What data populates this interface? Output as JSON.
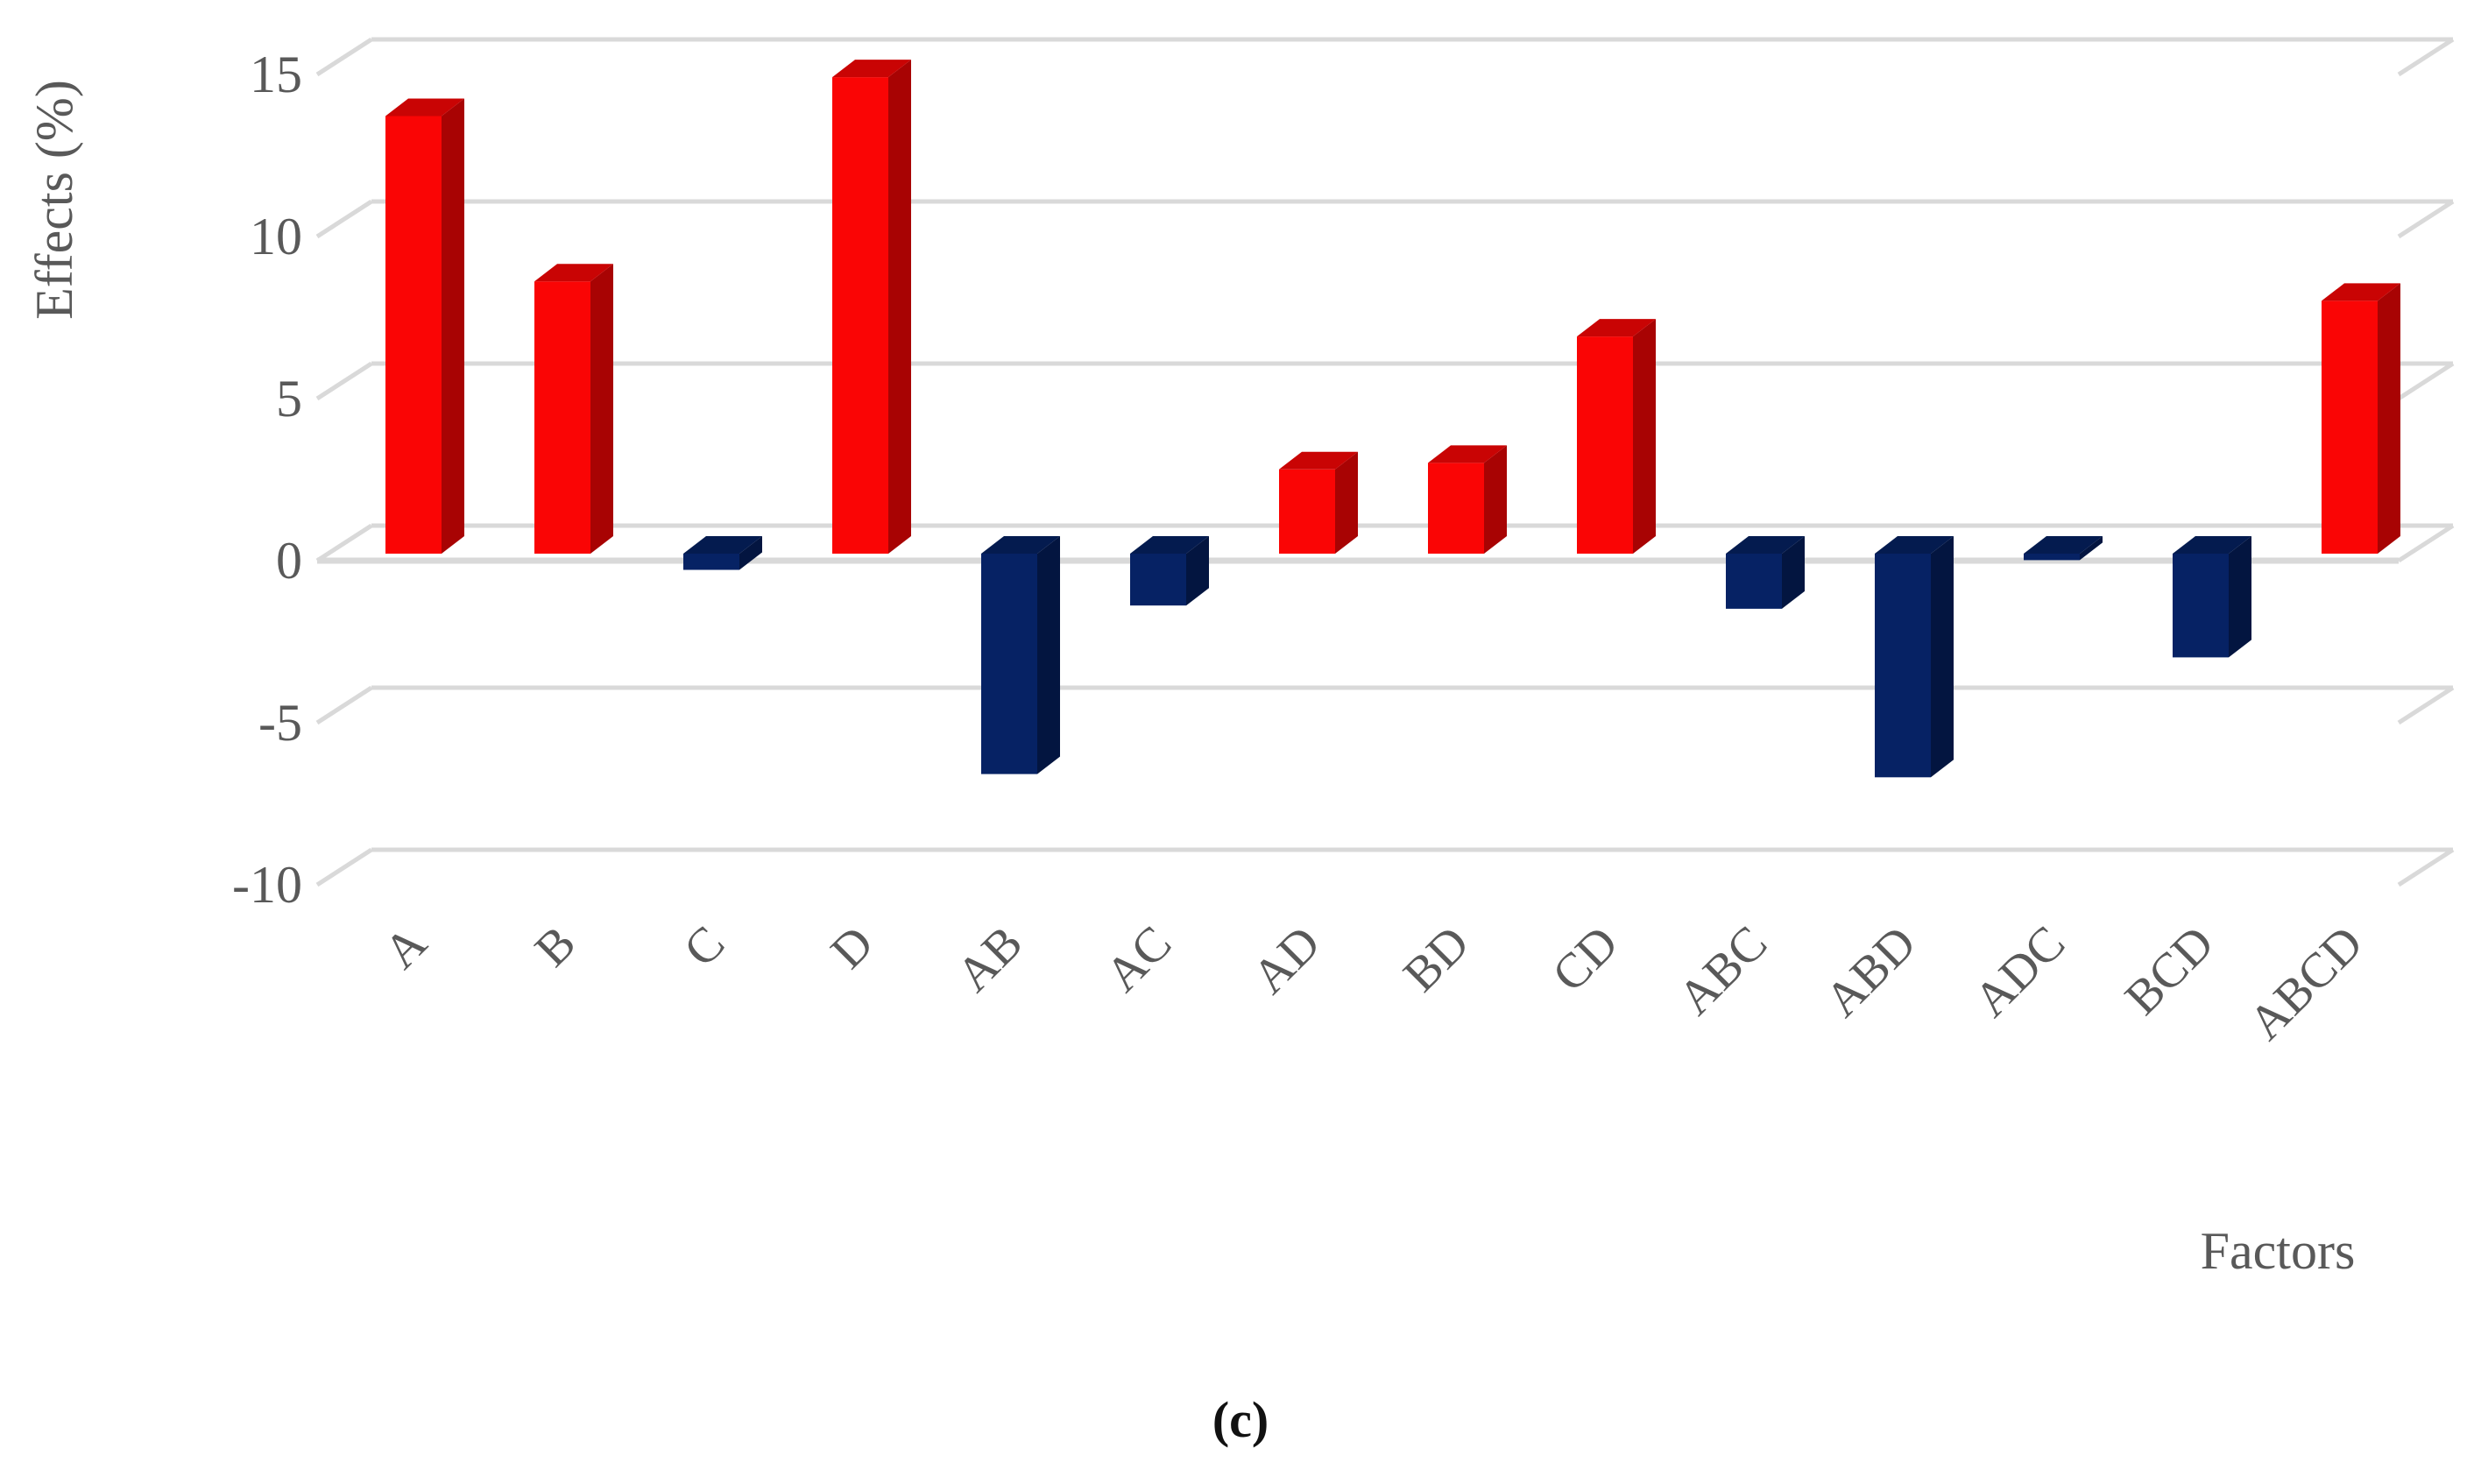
{
  "figure": {
    "caption": "(c)"
  },
  "chart_data": {
    "type": "bar",
    "style": "3d-column",
    "title": "",
    "ylabel": "Effects (%)",
    "xlabel": "Factors",
    "categories": [
      "A",
      "B",
      "C",
      "D",
      "AB",
      "AC",
      "AD",
      "BD",
      "CD",
      "ABC",
      "ABD",
      "ADC",
      "BCD",
      "ABCD"
    ],
    "values": [
      13.5,
      8.4,
      -0.5,
      14.7,
      -6.8,
      -1.6,
      2.6,
      2.8,
      6.7,
      -1.7,
      -6.9,
      -0.2,
      -3.2,
      7.8
    ],
    "yticks": [
      15,
      10,
      5,
      0,
      -5,
      -10
    ],
    "ylim": [
      -12.5,
      16.5
    ],
    "grid": true,
    "legend": "none",
    "colors": {
      "positive": {
        "front": "#FA0505",
        "top": "#C90404",
        "side": "#A80303"
      },
      "negative": {
        "front": "#062264",
        "top": "#041B4F",
        "side": "#031540"
      },
      "gridline": "#D9D9D9",
      "axis_text": "#595959",
      "caption_text": "#111111"
    }
  }
}
